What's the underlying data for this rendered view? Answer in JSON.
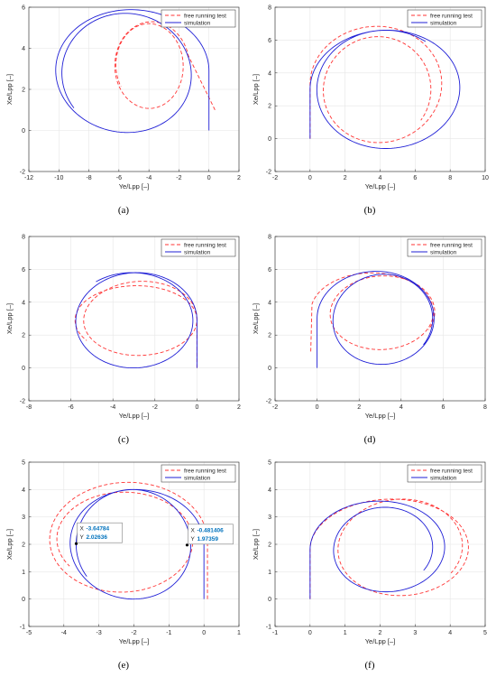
{
  "colors": {
    "test": "#ff3333",
    "simulation": "#1f1fd6",
    "grid": "#e6e6e6",
    "axis": "#262626",
    "datatip_value": "#0072bd"
  },
  "chart_data": [
    {
      "type": "line",
      "caption": "(a)",
      "xlabel": "Ye/Lpp [–]",
      "ylabel": "Xe/Lpp [–]",
      "xlim": [
        -12,
        2
      ],
      "ylim": [
        -2,
        6
      ],
      "xticks": [
        "-12",
        "-10",
        "-8",
        "-6",
        "-4",
        "-2",
        "0",
        "2"
      ],
      "xtick_values": [
        -12,
        -10,
        -8,
        -6,
        -4,
        -2,
        0,
        2
      ],
      "yticks": [
        "-2",
        "0",
        "2",
        "4",
        "6"
      ],
      "ytick_values": [
        -2,
        0,
        2,
        4,
        6
      ],
      "grid": true,
      "legend_position": "top-right",
      "series": [
        {
          "name": "free running test",
          "style": "dashed",
          "color": "#ff3333",
          "path": "spiral",
          "x0": 0.4,
          "y0": 1.0,
          "cx": -3.8,
          "cy": 3.1,
          "rx": 2.5,
          "ry": 2.2,
          "start_rad": 0.25,
          "cx2": -4.0,
          "cy2": 3.2,
          "rx2": 2.2,
          "ry2": 2.0,
          "turns": 1.55,
          "stretch": 1.2
        },
        {
          "name": "simulation",
          "style": "solid",
          "color": "#1f1fd6",
          "path": "spiral",
          "x0": 0.0,
          "y0": 0.0,
          "cx": -5.2,
          "cy": 2.9,
          "rx": 5.2,
          "ry": 3.0,
          "start_rad": 0.0,
          "cx2": -5.6,
          "cy2": 2.8,
          "rx2": 4.2,
          "ry2": 2.9,
          "turns": 1.6,
          "stretch": 1.2
        }
      ]
    },
    {
      "type": "line",
      "caption": "(b)",
      "xlabel": "Ye/Lpp [–]",
      "ylabel": "Xe/Lpp [–]",
      "xlim": [
        -2,
        10
      ],
      "ylim": [
        -2,
        8
      ],
      "xticks": [
        "-2",
        "0",
        "2",
        "4",
        "6",
        "8",
        "10"
      ],
      "xtick_values": [
        -2,
        0,
        2,
        4,
        6,
        8,
        10
      ],
      "yticks": [
        "-2",
        "0",
        "2",
        "4",
        "6",
        "8"
      ],
      "ytick_values": [
        -2,
        0,
        2,
        4,
        6,
        8
      ],
      "grid": true,
      "legend_position": "top-right",
      "series": [
        {
          "name": "free running test",
          "style": "dashed",
          "color": "#ff3333",
          "path": "spiral",
          "x0": 0.0,
          "y0": 0.0,
          "cx": 3.9,
          "cy": 3.3,
          "rx": 3.9,
          "ry": 3.6,
          "start_rad": 0.0,
          "cx2": 3.9,
          "cy2": 3.0,
          "rx2": 3.0,
          "ry2": 3.2,
          "turns": 1.6,
          "stretch": 1.2,
          "mirror": true
        },
        {
          "name": "simulation",
          "style": "solid",
          "color": "#1f1fd6",
          "path": "spiral",
          "x0": 0.0,
          "y0": 0.0,
          "cx": 4.4,
          "cy": 3.0,
          "rx": 4.4,
          "ry": 3.6,
          "start_rad": 0.0,
          "cx2": 4.3,
          "cy2": 3.0,
          "rx2": 3.9,
          "ry2": 3.6,
          "turns": 1.35,
          "stretch": 1.2,
          "mirror": true
        }
      ]
    },
    {
      "type": "line",
      "caption": "(c)",
      "xlabel": "Ye/Lpp [–]",
      "ylabel": "Xe/Lpp [–]",
      "xlim": [
        -8,
        2
      ],
      "ylim": [
        -2,
        8
      ],
      "xticks": [
        "-8",
        "-6",
        "-4",
        "-2",
        "0",
        "2"
      ],
      "xtick_values": [
        -8,
        -6,
        -4,
        -2,
        0,
        2
      ],
      "yticks": [
        "-2",
        "0",
        "2",
        "4",
        "6",
        "8"
      ],
      "ytick_values": [
        -2,
        0,
        2,
        4,
        6,
        8
      ],
      "grid": true,
      "legend_position": "top-right",
      "series": [
        {
          "name": "free running test",
          "style": "dashed",
          "color": "#ff3333",
          "path": "spiral",
          "x0": 0.0,
          "y0": 0.0,
          "cx": -2.6,
          "cy": 3.0,
          "rx": 2.6,
          "ry": 2.3,
          "start_rad": 0.0,
          "cx2": -2.9,
          "cy2": 2.9,
          "rx2": 2.9,
          "ry2": 2.1,
          "turns": 1.6,
          "stretch": 1.2
        },
        {
          "name": "simulation",
          "style": "solid",
          "color": "#1f1fd6",
          "path": "spiral",
          "x0": 0.0,
          "y0": 0.0,
          "cx": -2.8,
          "cy": 2.9,
          "rx": 2.8,
          "ry": 2.9,
          "start_rad": 0.0,
          "cx2": -3.1,
          "cy2": 2.9,
          "rx2": 2.9,
          "ry2": 2.9,
          "turns": 1.35,
          "stretch": 1.2
        }
      ]
    },
    {
      "type": "line",
      "caption": "(d)",
      "xlabel": "Ye/Lpp [–]",
      "ylabel": "Xe/Lpp [–]",
      "xlim": [
        -2,
        8
      ],
      "ylim": [
        -2,
        8
      ],
      "xticks": [
        "-2",
        "0",
        "2",
        "4",
        "6",
        "8"
      ],
      "xtick_values": [
        -2,
        0,
        2,
        4,
        6,
        8
      ],
      "yticks": [
        "-2",
        "0",
        "2",
        "4",
        "6",
        "8"
      ],
      "ytick_values": [
        -2,
        0,
        2,
        4,
        6,
        8
      ],
      "grid": true,
      "legend_position": "top-right",
      "series": [
        {
          "name": "free running test",
          "style": "dashed",
          "color": "#ff3333",
          "path": "spiral",
          "x0": -0.3,
          "y0": 1.0,
          "cx": 2.6,
          "cy": 3.4,
          "rx": 2.9,
          "ry": 2.4,
          "start_rad": 0.2,
          "cx2": 3.2,
          "cy2": 3.4,
          "rx2": 2.4,
          "ry2": 2.2,
          "turns": 1.55,
          "stretch": 1.2,
          "mirror": true
        },
        {
          "name": "simulation",
          "style": "solid",
          "color": "#1f1fd6",
          "path": "spiral",
          "x0": 0.0,
          "y0": 0.0,
          "cx": 2.8,
          "cy": 3.0,
          "rx": 2.8,
          "ry": 2.9,
          "start_rad": 0.0,
          "cx2": 3.2,
          "cy2": 3.0,
          "rx2": 2.3,
          "ry2": 2.7,
          "turns": 1.6,
          "stretch": 1.2,
          "mirror": true
        }
      ]
    },
    {
      "type": "line",
      "caption": "(e)",
      "xlabel": "Ye/Lpp [–]",
      "ylabel": "Xe/Lpp [–]",
      "xlim": [
        -5,
        1
      ],
      "ylim": [
        -1,
        5
      ],
      "xticks": [
        "-5",
        "-4",
        "-3",
        "-2",
        "-1",
        "0",
        "1"
      ],
      "xtick_values": [
        -5,
        -4,
        -3,
        -2,
        -1,
        0,
        1
      ],
      "yticks": [
        "-1",
        "0",
        "1",
        "2",
        "3",
        "4",
        "5"
      ],
      "ytick_values": [
        -1,
        0,
        1,
        2,
        3,
        4,
        5
      ],
      "grid": true,
      "legend_position": "top-right",
      "series": [
        {
          "name": "free running test",
          "style": "dashed",
          "color": "#ff3333",
          "path": "spiral",
          "x0": 0.1,
          "y0": 0.0,
          "cx": -2.2,
          "cy": 2.1,
          "rx": 2.3,
          "ry": 2.2,
          "start_rad": 0.0,
          "cx2": -2.3,
          "cy2": 2.2,
          "rx2": 1.9,
          "ry2": 1.7,
          "turns": 1.6,
          "stretch": 1.2
        },
        {
          "name": "simulation",
          "style": "solid",
          "color": "#1f1fd6",
          "path": "spiral",
          "x0": 0.0,
          "y0": 0.0,
          "cx": -1.95,
          "cy": 2.0,
          "rx": 1.95,
          "ry": 2.0,
          "start_rad": 0.0,
          "cx2": -2.05,
          "cy2": 2.0,
          "rx2": 1.6,
          "ry2": 2.0,
          "turns": 1.6,
          "stretch": 1.2
        }
      ],
      "datatips": [
        {
          "x_label": "X",
          "x_value": "-3.64784",
          "y_label": "Y",
          "y_value": "2.02636",
          "px": -3.64784,
          "py": 2.02636
        },
        {
          "x_label": "X",
          "x_value": "-0.481406",
          "y_label": "Y",
          "y_value": "1.97359",
          "px": -0.481406,
          "py": 1.97359
        }
      ]
    },
    {
      "type": "line",
      "caption": "(f)",
      "xlabel": "Ye/Lpp [–]",
      "ylabel": "Xe/Lpp [–]",
      "xlim": [
        -1,
        5
      ],
      "ylim": [
        -1,
        5
      ],
      "xticks": [
        "-1",
        "0",
        "1",
        "2",
        "3",
        "4",
        "5"
      ],
      "xtick_values": [
        -1,
        0,
        1,
        2,
        3,
        4,
        5
      ],
      "yticks": [
        "-1",
        "0",
        "1",
        "2",
        "3",
        "4",
        "5"
      ],
      "ytick_values": [
        -1,
        0,
        1,
        2,
        3,
        4,
        5
      ],
      "grid": true,
      "legend_position": "top-right",
      "series": [
        {
          "name": "free running test",
          "style": "dashed",
          "color": "#ff3333",
          "path": "spiral",
          "x0": 0.0,
          "y0": 0.0,
          "cx": 2.3,
          "cy": 1.8,
          "rx": 2.3,
          "ry": 1.85,
          "start_rad": 0.0,
          "cx2": 2.65,
          "cy2": 1.95,
          "rx2": 1.7,
          "ry2": 1.7,
          "turns": 1.6,
          "stretch": 1.2,
          "mirror": true
        },
        {
          "name": "simulation",
          "style": "solid",
          "color": "#1f1fd6",
          "path": "spiral",
          "x0": 0.0,
          "y0": 0.0,
          "cx": 2.0,
          "cy": 1.8,
          "rx": 2.0,
          "ry": 1.8,
          "start_rad": 0.0,
          "cx2": 2.15,
          "cy2": 1.9,
          "rx2": 1.35,
          "ry2": 1.45,
          "turns": 1.6,
          "stretch": 1.2,
          "mirror": true
        }
      ]
    }
  ]
}
